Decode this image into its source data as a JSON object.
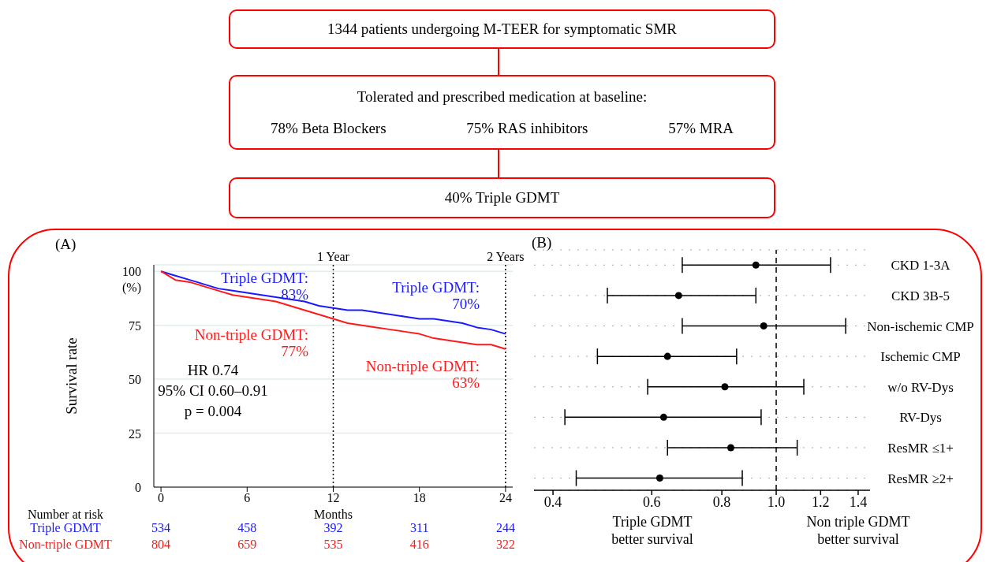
{
  "chart_data": [
    {
      "type": "other",
      "annotations": [
        "1344 patients undergoing M-TEER for symptomatic SMR",
        "Tolerated and prescribed medication at baseline:",
        "78% Beta Blockers",
        "75% RAS inhibitors",
        "57% MRA",
        "40% Triple GDMT"
      ]
    },
    {
      "type": "line",
      "x": [
        0,
        0.5,
        1,
        2,
        3,
        4,
        5,
        6,
        7,
        8,
        9,
        10,
        11,
        12,
        13,
        14,
        15,
        16,
        17,
        18,
        19,
        20,
        21,
        22,
        23,
        24
      ],
      "series": [
        {
          "name": "Triple GDMT",
          "color": "#1a1aff",
          "values": [
            100,
            99,
            98,
            96,
            94,
            92,
            91,
            90,
            89,
            88,
            87,
            86,
            84,
            83,
            82,
            82,
            81,
            80,
            79,
            78,
            78,
            77,
            76,
            74,
            73,
            71
          ]
        },
        {
          "name": "Non-triple GDMT",
          "color": "#ff1a1a",
          "values": [
            100,
            98,
            96,
            95,
            93,
            91,
            89,
            88,
            87,
            86,
            84,
            82,
            80,
            78,
            76,
            75,
            74,
            73,
            72,
            71,
            69,
            68,
            67,
            66,
            66,
            64
          ]
        }
      ],
      "xlabel": "Months",
      "ylabel": "Survival rate",
      "xlim": [
        -0.5,
        24.5
      ],
      "xticks": [
        0,
        6,
        12,
        18,
        24
      ],
      "ylim": [
        0,
        103
      ],
      "yticks": [
        0,
        25,
        50,
        75,
        {
          "value": 100,
          "label": "100\n(%)"
        }
      ],
      "grid": "y",
      "marker": "none",
      "line_style": "solid",
      "ref_lines": [
        {
          "axis": "x",
          "value": 12,
          "label": "1 Year",
          "line_style": "dotted"
        },
        {
          "axis": "x",
          "value": 24,
          "label": "2 Years",
          "line_style": "dotted"
        }
      ],
      "annotations": [
        "(A)",
        "HR 0.74\n95% CI 0.60–0.91\np = 0.004",
        "Number at risk",
        "534",
        "458",
        "392",
        "311",
        "244",
        "804",
        "659",
        "535",
        "416",
        "322",
        "Triple GDMT:\n83%",
        "Non-triple GDMT:\n77%",
        "Triple GDMT:\n70%",
        "Non-triple GDMT:\n63%"
      ]
    },
    {
      "type": "scatter",
      "orientation": "horizontal",
      "categories": [
        "CKD 1-3A",
        "CKD 3B-5",
        "Non-ischemic CMP",
        "Ischemic CMP",
        "w/o RV-Dys",
        "RV-Dys",
        "ResMR ≤1+",
        "ResMR ≥2+"
      ],
      "values": [
        0.92,
        0.67,
        0.95,
        0.64,
        0.81,
        0.63,
        0.83,
        0.62
      ],
      "errors": [
        [
          0.68,
          1.25
        ],
        [
          0.5,
          0.92
        ],
        [
          0.68,
          1.33
        ],
        [
          0.48,
          0.85
        ],
        [
          0.59,
          1.12
        ],
        [
          0.42,
          0.94
        ],
        [
          0.64,
          1.09
        ],
        [
          0.44,
          0.87
        ]
      ],
      "xlim": [
        0.37,
        1.47
      ],
      "xticks": [
        0.4,
        0.6,
        0.8,
        {
          "value": 1,
          "label": "1.0"
        },
        1.2,
        1.4
      ],
      "log": "x",
      "grid": "y",
      "marker": "circle",
      "color": "#000000",
      "ref_lines": [
        {
          "axis": "x",
          "value": 1,
          "line_style": "dashed"
        }
      ],
      "annotations": [
        "(B)",
        "Triple GDMT\nbetter survival",
        "Non triple GDMT\nbetter survival"
      ]
    }
  ]
}
